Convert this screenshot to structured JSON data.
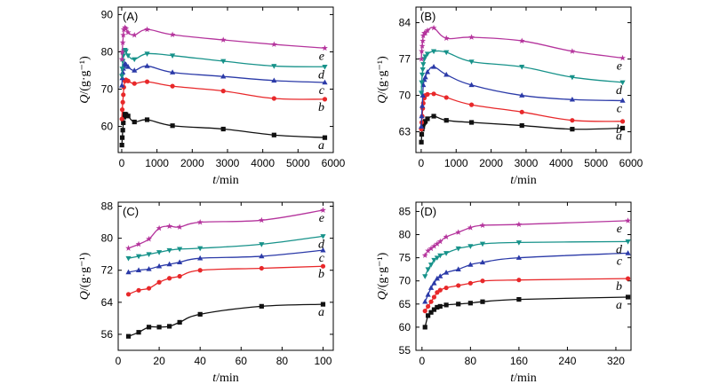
{
  "figure": {
    "xlabel_var": "t",
    "xlabel_unit": "/min",
    "ylabel_var": "Q",
    "ylabel_unit": "/(g·g⁻¹)"
  },
  "series_colors": {
    "a": "#111111",
    "b": "#e8282a",
    "c": "#2b3aa8",
    "d": "#17928a",
    "e": "#b5359d"
  },
  "chart_data": [
    {
      "type": "line",
      "panel_label": "(A)",
      "xlabel": "t/min",
      "ylabel": "Q/(g·g⁻¹)",
      "xlim": [
        -100,
        6000
      ],
      "ylim": [
        53,
        92
      ],
      "xticks": [
        0,
        1000,
        2000,
        3000,
        4000,
        5000,
        6000
      ],
      "yticks": [
        60,
        70,
        80,
        90
      ],
      "series": [
        {
          "name": "a",
          "x": [
            5,
            15,
            30,
            45,
            60,
            90,
            120,
            180,
            360,
            720,
            1440,
            2880,
            4320,
            5760
          ],
          "y": [
            55,
            57,
            59,
            61,
            62.5,
            63.3,
            63.2,
            62.8,
            61.2,
            61.8,
            60.2,
            59.3,
            57.7,
            57.0
          ]
        },
        {
          "name": "b",
          "x": [
            5,
            15,
            30,
            45,
            60,
            90,
            120,
            180,
            360,
            720,
            1440,
            2880,
            4320,
            5760
          ],
          "y": [
            62,
            64.5,
            66.5,
            68.5,
            70.5,
            72.2,
            72.5,
            72.2,
            71.5,
            72.0,
            70.8,
            69.5,
            67.5,
            67.3
          ]
        },
        {
          "name": "c",
          "x": [
            5,
            15,
            30,
            45,
            60,
            90,
            120,
            180,
            360,
            720,
            1440,
            2880,
            4320,
            5760
          ],
          "y": [
            71.0,
            73.0,
            74.5,
            75.5,
            76.2,
            76.8,
            76.6,
            76.0,
            75.0,
            76.2,
            74.5,
            73.4,
            72.3,
            71.8
          ]
        },
        {
          "name": "d",
          "x": [
            5,
            15,
            30,
            45,
            60,
            90,
            120,
            180,
            360,
            720,
            1440,
            2880,
            4320,
            5760
          ],
          "y": [
            73.5,
            75.5,
            77.5,
            79.0,
            80.2,
            80.5,
            80.2,
            79.0,
            78.0,
            79.5,
            79.0,
            77.5,
            76.2,
            76.0
          ]
        },
        {
          "name": "e",
          "x": [
            5,
            15,
            30,
            45,
            60,
            90,
            120,
            180,
            360,
            720,
            1440,
            2880,
            4320,
            5760
          ],
          "y": [
            78.0,
            80.0,
            82.5,
            84.5,
            86.0,
            86.5,
            86.2,
            85.2,
            84.5,
            86.0,
            84.6,
            83.2,
            82.0,
            81.0
          ]
        }
      ]
    },
    {
      "type": "line",
      "panel_label": "(B)",
      "xlabel": "t/min",
      "ylabel": "Q/(g·g⁻¹)",
      "xlim": [
        -150,
        6000
      ],
      "ylim": [
        59,
        87
      ],
      "xticks": [
        0,
        1000,
        2000,
        3000,
        4000,
        5000,
        6000
      ],
      "yticks": [
        63,
        70,
        77,
        84
      ],
      "series": [
        {
          "name": "a",
          "x": [
            5,
            15,
            30,
            45,
            60,
            90,
            120,
            180,
            360,
            720,
            1440,
            2880,
            4320,
            5760
          ],
          "y": [
            61.0,
            62.5,
            63.5,
            64.0,
            64.5,
            64.8,
            65.0,
            65.5,
            66.0,
            65.2,
            64.8,
            64.2,
            63.5,
            63.7
          ]
        },
        {
          "name": "b",
          "x": [
            5,
            15,
            30,
            45,
            60,
            90,
            120,
            180,
            360,
            720,
            1440,
            2880,
            4320,
            5760
          ],
          "y": [
            63.5,
            64.8,
            66.0,
            67.5,
            68.5,
            69.5,
            70.0,
            70.2,
            70.3,
            69.6,
            68.2,
            66.8,
            65.2,
            65.0
          ]
        },
        {
          "name": "c",
          "x": [
            5,
            15,
            30,
            45,
            60,
            90,
            120,
            180,
            360,
            720,
            1440,
            2880,
            4320,
            5760
          ],
          "y": [
            64.0,
            66.0,
            68.0,
            70.0,
            72.0,
            73.0,
            73.5,
            74.5,
            75.5,
            74.0,
            72.0,
            70.0,
            69.2,
            69.0
          ]
        },
        {
          "name": "d",
          "x": [
            5,
            15,
            30,
            45,
            60,
            90,
            120,
            180,
            360,
            720,
            1440,
            2880,
            4320,
            5760
          ],
          "y": [
            70.5,
            72.5,
            74.0,
            75.0,
            76.0,
            77.0,
            77.5,
            78.0,
            78.5,
            78.3,
            76.5,
            75.5,
            73.5,
            72.5
          ]
        },
        {
          "name": "e",
          "x": [
            5,
            15,
            30,
            45,
            60,
            90,
            120,
            180,
            360,
            720,
            1440,
            2880,
            4320,
            5760
          ],
          "y": [
            77.0,
            78.5,
            79.5,
            80.5,
            81.5,
            82.0,
            82.0,
            82.5,
            83.0,
            81.0,
            81.2,
            80.5,
            78.5,
            77.2
          ]
        }
      ]
    },
    {
      "type": "line",
      "panel_label": "(C)",
      "xlabel": "t/min",
      "ylabel": "Q/(g·g⁻¹)",
      "xlim": [
        0,
        105
      ],
      "ylim": [
        52,
        89
      ],
      "xticks": [
        0,
        20,
        40,
        60,
        80,
        100
      ],
      "yticks": [
        56,
        64,
        72,
        80,
        88
      ],
      "series": [
        {
          "name": "a",
          "x": [
            5,
            10,
            15,
            20,
            25,
            30,
            40,
            70,
            100
          ],
          "y": [
            55.5,
            56.5,
            57.8,
            57.8,
            58.0,
            59.0,
            61.0,
            63.0,
            63.5
          ]
        },
        {
          "name": "b",
          "x": [
            5,
            10,
            15,
            20,
            25,
            30,
            40,
            70,
            100
          ],
          "y": [
            66.0,
            67.0,
            67.5,
            69.0,
            70.0,
            70.5,
            72.0,
            72.5,
            73.0
          ]
        },
        {
          "name": "c",
          "x": [
            5,
            10,
            15,
            20,
            25,
            30,
            40,
            70,
            100
          ],
          "y": [
            71.5,
            72.0,
            72.3,
            73.0,
            73.5,
            74.0,
            75.0,
            75.5,
            77.0
          ]
        },
        {
          "name": "d",
          "x": [
            5,
            10,
            15,
            20,
            25,
            30,
            40,
            70,
            100
          ],
          "y": [
            75.0,
            75.5,
            76.0,
            76.5,
            77.0,
            77.3,
            77.5,
            78.5,
            80.5
          ]
        },
        {
          "name": "e",
          "x": [
            5,
            10,
            15,
            20,
            25,
            30,
            40,
            70,
            100
          ],
          "y": [
            77.5,
            78.5,
            79.8,
            82.5,
            83.0,
            82.8,
            84.0,
            84.5,
            87.0
          ]
        }
      ]
    },
    {
      "type": "line",
      "panel_label": "(D)",
      "xlabel": "t/min",
      "ylabel": "Q/(g·g⁻¹)",
      "xlim": [
        -10,
        345
      ],
      "ylim": [
        55,
        87
      ],
      "xticks": [
        0,
        80,
        160,
        240,
        320
      ],
      "yticks": [
        55,
        60,
        65,
        70,
        75,
        80,
        85
      ],
      "series": [
        {
          "name": "a",
          "x": [
            5,
            10,
            15,
            20,
            25,
            30,
            40,
            60,
            80,
            100,
            160,
            340
          ],
          "y": [
            60.0,
            62.5,
            63.2,
            63.8,
            64.3,
            64.5,
            64.8,
            65.0,
            65.2,
            65.5,
            66.0,
            66.5
          ]
        },
        {
          "name": "b",
          "x": [
            5,
            10,
            15,
            20,
            25,
            30,
            40,
            60,
            80,
            100,
            160,
            340
          ],
          "y": [
            63.5,
            64.5,
            65.5,
            66.5,
            67.5,
            68.0,
            68.5,
            69.0,
            69.5,
            70.0,
            70.2,
            70.5
          ]
        },
        {
          "name": "c",
          "x": [
            5,
            10,
            15,
            20,
            25,
            30,
            40,
            60,
            80,
            100,
            160,
            340
          ],
          "y": [
            65.5,
            67.0,
            68.5,
            69.5,
            70.5,
            71.0,
            71.8,
            72.5,
            73.5,
            74.0,
            75.0,
            76.0
          ]
        },
        {
          "name": "d",
          "x": [
            5,
            10,
            15,
            20,
            25,
            30,
            40,
            60,
            80,
            100,
            160,
            340
          ],
          "y": [
            71.0,
            72.5,
            73.5,
            74.5,
            75.0,
            75.5,
            76.0,
            77.0,
            77.5,
            78.0,
            78.3,
            78.5
          ]
        },
        {
          "name": "e",
          "x": [
            5,
            10,
            15,
            20,
            25,
            30,
            40,
            60,
            80,
            100,
            160,
            340
          ],
          "y": [
            75.5,
            76.5,
            77.0,
            77.5,
            78.0,
            78.5,
            79.5,
            80.5,
            81.5,
            82.0,
            82.2,
            83.0
          ]
        }
      ]
    }
  ]
}
